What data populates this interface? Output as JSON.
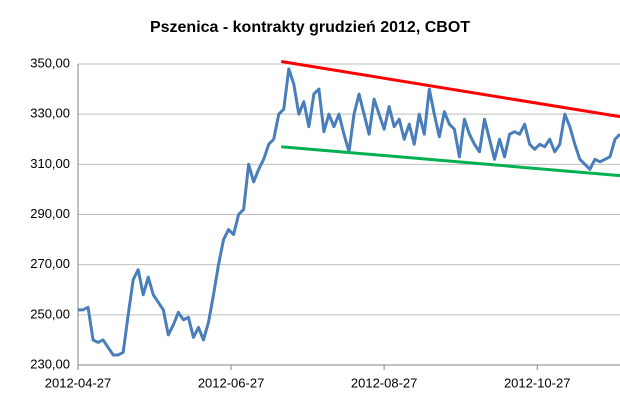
{
  "chart_data": {
    "type": "line",
    "title": "Pszenica - kontrakty grudzień 2012, CBOT",
    "xlim": [
      "2012-04-27",
      "2012-11-29"
    ],
    "xticks": [
      "2012-04-27",
      "2012-06-27",
      "2012-08-27",
      "2012-10-27"
    ],
    "ylim": [
      230,
      350
    ],
    "yticks": [
      {
        "value": 230,
        "label": "230,00"
      },
      {
        "value": 250,
        "label": "250,00"
      },
      {
        "value": 270,
        "label": "270,00"
      },
      {
        "value": 290,
        "label": "290,00"
      },
      {
        "value": 310,
        "label": "310,00"
      },
      {
        "value": 330,
        "label": "330,00"
      },
      {
        "value": 350,
        "label": "350,00"
      }
    ],
    "grid": true,
    "series": [
      {
        "color": "#4a7ebb",
        "x": [
          "2012-04-27",
          "2012-04-29",
          "2012-05-01",
          "2012-05-03",
          "2012-05-05",
          "2012-05-07",
          "2012-05-09",
          "2012-05-11",
          "2012-05-13",
          "2012-05-15",
          "2012-05-17",
          "2012-05-19",
          "2012-05-21",
          "2012-05-23",
          "2012-05-25",
          "2012-05-27",
          "2012-05-29",
          "2012-05-31",
          "2012-06-02",
          "2012-06-04",
          "2012-06-06",
          "2012-06-08",
          "2012-06-10",
          "2012-06-12",
          "2012-06-14",
          "2012-06-16",
          "2012-06-18",
          "2012-06-20",
          "2012-06-22",
          "2012-06-24",
          "2012-06-26",
          "2012-06-28",
          "2012-06-30",
          "2012-07-02",
          "2012-07-04",
          "2012-07-06",
          "2012-07-08",
          "2012-07-10",
          "2012-07-12",
          "2012-07-14",
          "2012-07-16",
          "2012-07-18",
          "2012-07-20",
          "2012-07-22",
          "2012-07-24",
          "2012-07-26",
          "2012-07-28",
          "2012-07-30",
          "2012-08-01",
          "2012-08-03",
          "2012-08-05",
          "2012-08-07",
          "2012-08-09",
          "2012-08-11",
          "2012-08-13",
          "2012-08-15",
          "2012-08-17",
          "2012-08-19",
          "2012-08-21",
          "2012-08-23",
          "2012-08-25",
          "2012-08-27",
          "2012-08-29",
          "2012-08-31",
          "2012-09-02",
          "2012-09-04",
          "2012-09-06",
          "2012-09-08",
          "2012-09-10",
          "2012-09-12",
          "2012-09-14",
          "2012-09-16",
          "2012-09-18",
          "2012-09-20",
          "2012-09-22",
          "2012-09-24",
          "2012-09-26",
          "2012-09-28",
          "2012-09-30",
          "2012-10-02",
          "2012-10-04",
          "2012-10-06",
          "2012-10-08",
          "2012-10-10",
          "2012-10-12",
          "2012-10-14",
          "2012-10-16",
          "2012-10-18",
          "2012-10-20",
          "2012-10-22",
          "2012-10-24",
          "2012-10-26",
          "2012-10-28",
          "2012-10-30",
          "2012-11-01",
          "2012-11-03",
          "2012-11-05",
          "2012-11-07",
          "2012-11-09",
          "2012-11-11",
          "2012-11-13",
          "2012-11-15",
          "2012-11-17",
          "2012-11-19",
          "2012-11-21",
          "2012-11-23",
          "2012-11-25",
          "2012-11-27",
          "2012-11-29"
        ],
        "values": [
          252,
          252,
          253,
          240,
          239,
          240,
          237,
          234,
          234,
          235,
          250,
          264,
          268,
          258,
          265,
          258,
          255,
          252,
          242,
          246,
          251,
          248,
          249,
          241,
          245,
          240,
          247,
          258,
          270,
          280,
          284,
          282,
          290,
          292,
          310,
          303,
          308,
          312,
          318,
          320,
          330,
          332,
          348,
          342,
          330,
          335,
          325,
          338,
          340,
          323,
          330,
          325,
          330,
          322,
          315,
          330,
          338,
          330,
          322,
          336,
          330,
          324,
          333,
          325,
          328,
          320,
          326,
          318,
          330,
          322,
          340,
          330,
          321,
          331,
          326,
          324,
          313,
          328,
          322,
          318,
          315,
          328,
          320,
          312,
          320,
          313,
          322,
          323,
          322,
          326,
          318,
          316,
          318,
          317,
          320,
          315,
          318,
          330,
          325,
          318,
          312,
          310,
          308,
          312,
          311,
          312,
          313,
          320,
          322
        ]
      },
      {
        "color": "#ff0000",
        "x": [
          "2012-07-17",
          "2012-11-29"
        ],
        "values": [
          351,
          329
        ]
      },
      {
        "color": "#00b050",
        "x": [
          "2012-07-17",
          "2012-11-29"
        ],
        "values": [
          317,
          305.5
        ]
      }
    ]
  }
}
